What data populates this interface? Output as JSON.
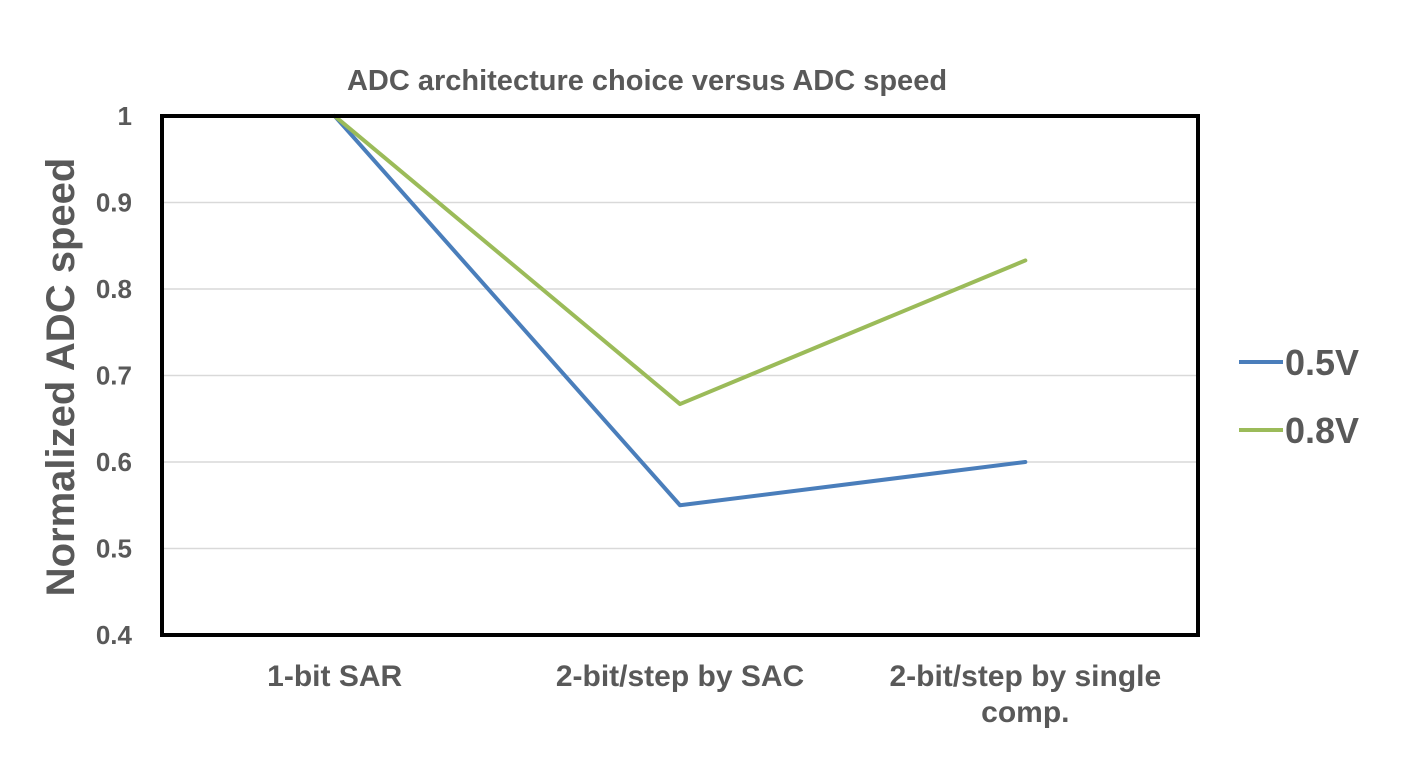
{
  "chart_data": {
    "type": "line",
    "title": "ADC architecture choice versus ADC speed",
    "xlabel": "",
    "ylabel": "Normalized ADC speed",
    "categories": [
      "1-bit SAR",
      "2-bit/step by SAC",
      "2-bit/step by single comp."
    ],
    "ylim": [
      0.4,
      1
    ],
    "yticks": [
      "0.4",
      "0.5",
      "0.6",
      "0.7",
      "0.8",
      "0.9",
      "1"
    ],
    "grid": true,
    "legend_position": "right",
    "series": [
      {
        "name": "0.5V",
        "color": "#4a7ebb",
        "values": [
          1.0,
          0.55,
          0.6
        ]
      },
      {
        "name": "0.8V",
        "color": "#9bbb59",
        "values": [
          1.0,
          0.667,
          0.833
        ]
      }
    ]
  }
}
